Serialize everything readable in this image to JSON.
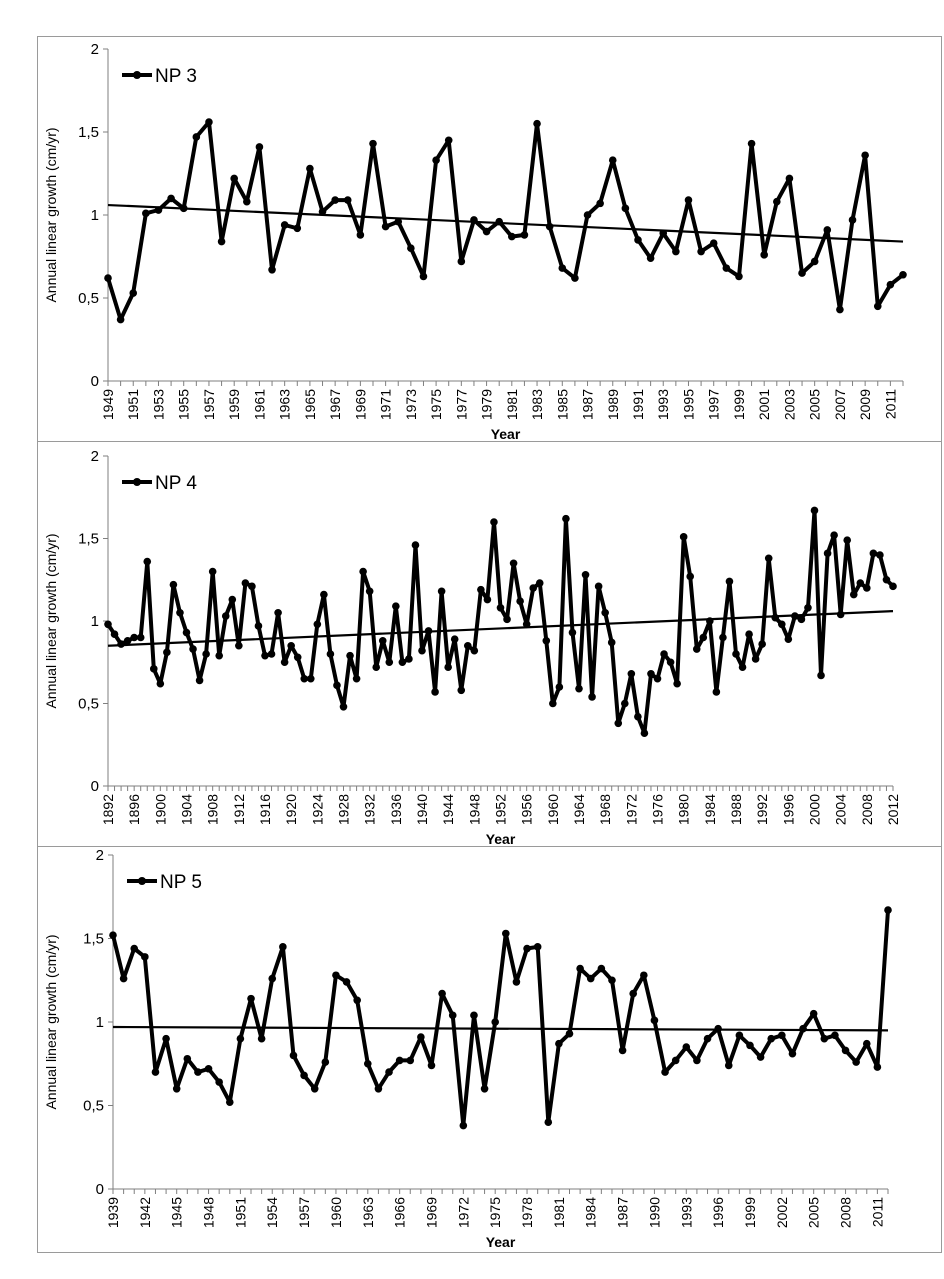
{
  "chart_data": [
    {
      "type": "line",
      "legend": "NP 3",
      "legend_position": "top-left",
      "xlabel": "Year",
      "ylabel": "Annual linear growth (cm/yr)",
      "ylim": [
        0,
        2
      ],
      "yticks": [
        "0",
        "0,5",
        "1",
        "1,5",
        "2"
      ],
      "x_start": 1949,
      "x_end": 2012,
      "x_tick_step": 2,
      "x_ticks": [
        "1949",
        "1951",
        "1953",
        "1955",
        "1957",
        "1959",
        "1961",
        "1963",
        "1965",
        "1967",
        "1969",
        "1971",
        "1973",
        "1975",
        "1977",
        "1979",
        "1981",
        "1983",
        "1985",
        "1987",
        "1989",
        "1991",
        "1993",
        "1995",
        "1997",
        "1999",
        "2001",
        "2003",
        "2005",
        "2007",
        "2009",
        "2011"
      ],
      "grid": false,
      "trendline": [
        1.06,
        0.84
      ],
      "values": [
        0.62,
        0.37,
        0.53,
        1.01,
        1.03,
        1.1,
        1.04,
        1.47,
        1.56,
        0.84,
        1.22,
        1.08,
        1.41,
        0.67,
        0.94,
        0.92,
        1.28,
        1.02,
        1.09,
        1.09,
        0.88,
        1.43,
        0.93,
        0.96,
        0.8,
        0.63,
        1.33,
        1.45,
        0.72,
        0.97,
        0.9,
        0.96,
        0.87,
        0.88,
        1.55,
        0.93,
        0.68,
        0.62,
        1.0,
        1.07,
        1.33,
        1.04,
        0.85,
        0.74,
        0.89,
        0.78,
        1.09,
        0.78,
        0.83,
        0.68,
        0.63,
        1.43,
        0.76,
        1.08,
        1.22,
        0.65,
        0.72,
        0.91,
        0.43,
        0.97,
        1.36,
        0.45,
        0.58,
        0.64
      ]
    },
    {
      "type": "line",
      "legend": "NP 4",
      "legend_position": "top-left",
      "xlabel": "Year",
      "ylabel": "Annual linear growth (cm/yr)",
      "ylim": [
        0,
        2
      ],
      "yticks": [
        "0",
        "0,5",
        "1",
        "1,5",
        "2"
      ],
      "x_start": 1892,
      "x_end": 2012,
      "x_tick_step": 4,
      "x_ticks": [
        "1892",
        "1896",
        "1900",
        "1904",
        "1908",
        "1912",
        "1916",
        "1920",
        "1924",
        "1928",
        "1932",
        "1936",
        "1940",
        "1944",
        "1948",
        "1952",
        "1956",
        "1960",
        "1964",
        "1968",
        "1972",
        "1976",
        "1980",
        "1984",
        "1988",
        "1992",
        "1996",
        "2000",
        "2004",
        "2008",
        "2012"
      ],
      "grid": false,
      "trendline": [
        0.85,
        1.06
      ],
      "values": [
        0.98,
        0.92,
        0.86,
        0.88,
        0.9,
        0.9,
        1.36,
        0.71,
        0.62,
        0.81,
        1.22,
        1.05,
        0.93,
        0.83,
        0.64,
        0.8,
        1.3,
        0.79,
        1.03,
        1.13,
        0.85,
        1.23,
        1.21,
        0.97,
        0.79,
        0.8,
        1.05,
        0.75,
        0.85,
        0.78,
        0.65,
        0.65,
        0.98,
        1.16,
        0.8,
        0.61,
        0.48,
        0.79,
        0.65,
        1.3,
        1.18,
        0.72,
        0.88,
        0.75,
        1.09,
        0.75,
        0.77,
        1.46,
        0.82,
        0.94,
        0.57,
        1.18,
        0.72,
        0.89,
        0.58,
        0.85,
        0.82,
        1.19,
        1.13,
        1.6,
        1.08,
        1.01,
        1.35,
        1.12,
        0.98,
        1.2,
        1.23,
        0.88,
        0.5,
        0.6,
        1.62,
        0.93,
        0.59,
        1.28,
        0.54,
        1.21,
        1.05,
        0.87,
        0.38,
        0.5,
        0.68,
        0.42,
        0.32,
        0.68,
        0.65,
        0.8,
        0.75,
        0.62,
        1.51,
        1.27,
        0.83,
        0.9,
        1.0,
        0.57,
        0.9,
        1.24,
        0.8,
        0.72,
        0.92,
        0.77,
        0.86,
        1.38,
        1.02,
        0.98,
        0.89,
        1.03,
        1.01,
        1.08,
        1.67,
        0.67,
        1.41,
        1.52,
        1.04,
        1.49,
        1.16,
        1.23,
        1.2,
        1.41,
        1.4,
        1.25,
        1.21
      ]
    },
    {
      "type": "line",
      "legend": "NP 5",
      "legend_position": "top-left",
      "xlabel": "Year",
      "ylabel": "Annual linear growth (cm/yr)",
      "ylim": [
        0,
        2
      ],
      "yticks": [
        "0",
        "0,5",
        "1",
        "1,5",
        "2"
      ],
      "x_start": 1939,
      "x_end": 2012,
      "x_tick_step": 3,
      "x_ticks": [
        "1939",
        "1942",
        "1945",
        "1948",
        "1951",
        "1954",
        "1957",
        "1960",
        "1963",
        "1966",
        "1969",
        "1972",
        "1975",
        "1978",
        "1981",
        "1984",
        "1987",
        "1990",
        "1993",
        "1996",
        "1999",
        "2002",
        "2005",
        "2008",
        "2011"
      ],
      "grid": false,
      "trendline": [
        0.97,
        0.95
      ],
      "values": [
        1.52,
        1.26,
        1.44,
        1.39,
        0.7,
        0.9,
        0.6,
        0.78,
        0.7,
        0.72,
        0.64,
        0.52,
        0.9,
        1.14,
        0.9,
        1.26,
        1.45,
        0.8,
        0.68,
        0.6,
        0.76,
        1.28,
        1.24,
        1.13,
        0.75,
        0.6,
        0.7,
        0.77,
        0.77,
        0.91,
        0.74,
        1.17,
        1.04,
        0.38,
        1.04,
        0.6,
        1.0,
        1.53,
        1.24,
        1.44,
        1.45,
        0.4,
        0.87,
        0.93,
        1.32,
        1.26,
        1.32,
        1.25,
        0.83,
        1.17,
        1.28,
        1.01,
        0.7,
        0.77,
        0.85,
        0.77,
        0.9,
        0.96,
        0.74,
        0.92,
        0.86,
        0.79,
        0.9,
        0.92,
        0.81,
        0.96,
        1.05,
        0.9,
        0.92,
        0.83,
        0.76,
        0.87,
        0.73,
        1.67
      ]
    }
  ]
}
